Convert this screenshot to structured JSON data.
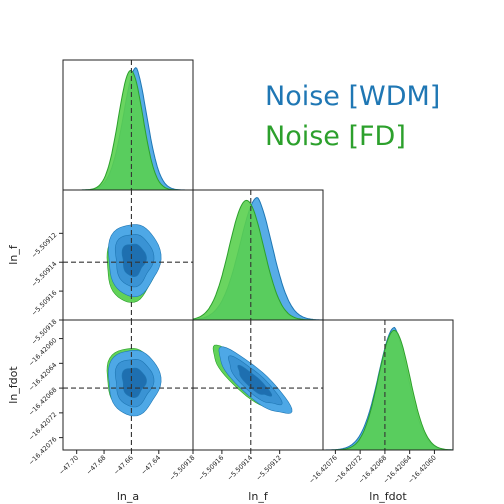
{
  "chart_data": {
    "type": "corner",
    "parameters": [
      "ln_a",
      "ln_f",
      "ln_fdot"
    ],
    "axis_labels": [
      "ln_a",
      "ln_f",
      "ln_fdot"
    ],
    "truths": {
      "ln_a": -47.66,
      "ln_f": -5.50914,
      "ln_fdot": -16.42068
    },
    "ranges": {
      "ln_a": [
        -47.71,
        -47.615
      ],
      "ln_f": [
        -5.50918,
        -5.50909
      ],
      "ln_fdot": [
        -16.42078,
        -16.42057
      ]
    },
    "ticks": {
      "ln_a": [
        "-47.70",
        "-47.68",
        "-47.66",
        "-47.64"
      ],
      "ln_f": [
        "-5.50918",
        "-5.50916",
        "-5.50914",
        "-5.50912"
      ],
      "ln_fdot": [
        "-16.42076",
        "-16.42072",
        "-16.42068",
        "-16.42064",
        "-16.42060"
      ]
    },
    "y_ticks": {
      "ln_f": [
        "-5.50912",
        "-5.50914",
        "-5.50916",
        "-5.50918"
      ],
      "ln_fdot": [
        "-16.42060",
        "-16.42064",
        "-16.42068",
        "-16.42072",
        "-16.42076"
      ]
    },
    "series": [
      {
        "name": "Noise [WDM]",
        "color": "#1f77b4",
        "fill_color": "#4ea8e6",
        "mean": {
          "ln_a": -47.6585,
          "ln_f": -5.509138,
          "ln_fdot": -16.42067
        },
        "sigma": {
          "ln_a": 0.0095,
          "ln_f": 1.25e-05,
          "ln_fdot": 2.65e-05
        }
      },
      {
        "name": "Noise [FD]",
        "color": "#2ca02c",
        "fill_color": "#5ad04f",
        "mean": {
          "ln_a": -47.6605,
          "ln_f": -5.509143,
          "ln_fdot": -16.420665
        },
        "sigma": {
          "ln_a": 0.009,
          "ln_f": 1.2e-05,
          "ln_fdot": 2.55e-05
        }
      }
    ],
    "correlations": {
      "ln_a|ln_f": 0.0,
      "ln_a|ln_fdot": 0.0,
      "ln_f|ln_fdot": -0.85
    },
    "grid": false,
    "legend_position": "top-right"
  }
}
